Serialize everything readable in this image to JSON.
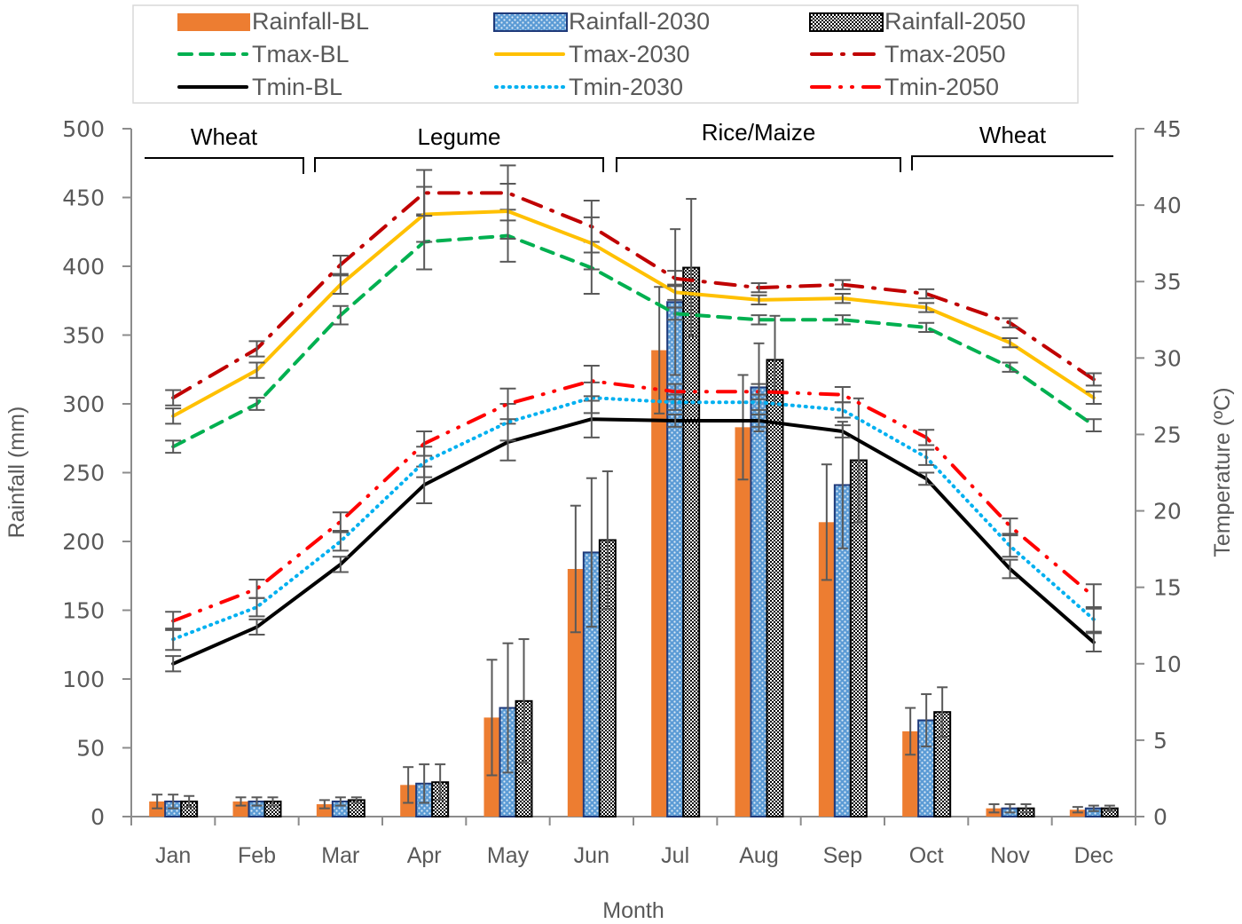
{
  "chart_data": {
    "type": "bar+line",
    "title": "",
    "xlabel": "Month",
    "ylabel": "Rainfall (mm)",
    "y2label": "Temperature (ºC)",
    "categories": [
      "Jan",
      "Feb",
      "Mar",
      "Apr",
      "May",
      "Jun",
      "Jul",
      "Aug",
      "Sep",
      "Oct",
      "Nov",
      "Dec"
    ],
    "ylim": [
      0,
      500
    ],
    "yticks": [
      0,
      50,
      100,
      150,
      200,
      250,
      300,
      350,
      400,
      450,
      500
    ],
    "y2lim": [
      0,
      45
    ],
    "y2ticks": [
      0,
      5,
      10,
      15,
      20,
      25,
      30,
      35,
      40,
      45
    ],
    "grid": false,
    "legend_position": "top",
    "bar_series": [
      {
        "name": "Rainfall-BL",
        "color": "#ED7D31",
        "pattern": "solid",
        "values": [
          11,
          11,
          9,
          23,
          72,
          180,
          339,
          283,
          214,
          62,
          6,
          5
        ],
        "error": [
          5,
          3,
          3,
          13,
          42,
          46,
          46,
          38,
          42,
          17,
          3,
          2
        ]
      },
      {
        "name": "Rainfall-2030",
        "color": "#5B9BD5",
        "pattern": "dotted-blue",
        "values": [
          11,
          11,
          11,
          24,
          79,
          192,
          374,
          312,
          241,
          70,
          6,
          6
        ],
        "error": [
          5,
          3,
          3,
          14,
          47,
          54,
          53,
          32,
          46,
          19,
          3,
          2
        ]
      },
      {
        "name": "Rainfall-2050",
        "color": "#000000",
        "pattern": "checker",
        "values": [
          11,
          11,
          12,
          25,
          84,
          201,
          399,
          332,
          259,
          76,
          6,
          6
        ],
        "error": [
          4,
          3,
          2,
          13,
          45,
          50,
          50,
          32,
          45,
          18,
          3,
          2
        ]
      }
    ],
    "line_series": [
      {
        "name": "Tmax-BL",
        "color": "#00B050",
        "dash": "dash",
        "values": [
          24.2,
          27.0,
          32.8,
          37.6,
          38.0,
          35.9,
          32.9,
          32.5,
          32.5,
          32.0,
          29.4,
          25.6
        ],
        "error": [
          0.4,
          0.4,
          0.6,
          1.8,
          1.7,
          1.7,
          0.4,
          0.3,
          0.3,
          0.3,
          0.3,
          0.4
        ]
      },
      {
        "name": "Tmax-2030",
        "color": "#FFC000",
        "dash": "solid",
        "values": [
          26.2,
          29.2,
          34.8,
          39.4,
          39.6,
          37.5,
          34.3,
          33.8,
          33.9,
          33.3,
          31.0,
          27.4
        ],
        "error": [
          0.5,
          0.5,
          0.6,
          1.8,
          1.8,
          1.7,
          0.5,
          0.3,
          0.3,
          0.3,
          0.3,
          0.4
        ]
      },
      {
        "name": "Tmax-2050",
        "color": "#C00000",
        "dash": "dash-dot",
        "values": [
          27.4,
          30.6,
          36.1,
          40.8,
          40.8,
          38.6,
          35.2,
          34.6,
          34.8,
          34.2,
          32.3,
          28.6
        ],
        "error": [
          0.5,
          0.5,
          0.6,
          1.5,
          1.8,
          1.7,
          0.5,
          0.3,
          0.3,
          0.3,
          0.3,
          0.4
        ]
      },
      {
        "name": "Tmin-BL",
        "color": "#000000",
        "dash": "solid",
        "values": [
          10.0,
          12.4,
          16.5,
          21.7,
          24.5,
          26.0,
          25.9,
          25.9,
          25.2,
          22.1,
          16.2,
          11.4
        ],
        "error": [
          0.5,
          0.5,
          0.5,
          1.2,
          1.2,
          1.2,
          0.4,
          0.4,
          0.4,
          0.4,
          0.6,
          0.6
        ]
      },
      {
        "name": "Tmin-2030",
        "color": "#00B0F0",
        "dash": "dot",
        "values": [
          11.6,
          13.7,
          18.0,
          23.2,
          25.8,
          27.4,
          27.1,
          27.1,
          26.6,
          23.5,
          17.7,
          12.9
        ],
        "error": [
          0.7,
          0.6,
          0.6,
          1.0,
          1.2,
          1.0,
          0.5,
          0.5,
          0.5,
          0.5,
          0.7,
          0.8
        ]
      },
      {
        "name": "Tmin-2050",
        "color": "#FF0000",
        "dash": "dash-dot-dot",
        "values": [
          12.8,
          14.9,
          19.3,
          24.4,
          27.0,
          28.5,
          27.8,
          27.8,
          27.6,
          24.8,
          19.0,
          14.4
        ],
        "error": [
          0.6,
          0.6,
          0.6,
          0.8,
          1.0,
          1.0,
          0.5,
          0.5,
          0.5,
          0.5,
          0.5,
          0.8
        ]
      }
    ],
    "annotations": [
      {
        "text": "Wheat",
        "span": [
          "Jan",
          "Feb"
        ]
      },
      {
        "text": "Legume",
        "span": [
          "Mar",
          "Jun"
        ]
      },
      {
        "text": "Rice/Maize",
        "span": [
          "Jul",
          "Sep"
        ]
      },
      {
        "text": "Wheat",
        "span": [
          "Oct",
          "Dec"
        ]
      }
    ]
  }
}
